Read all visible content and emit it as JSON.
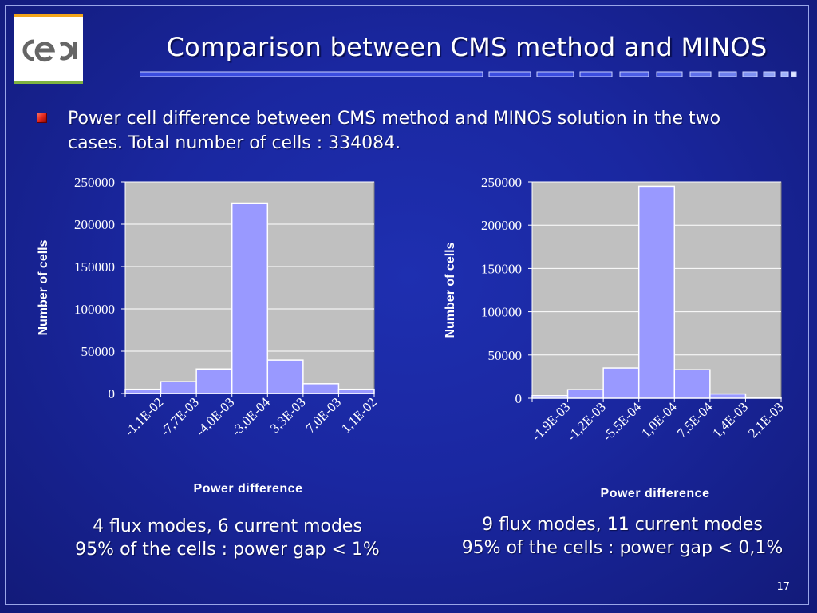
{
  "logo_text": "cea",
  "title": "Comparison between CMS method and MINOS",
  "bullet_text": "Power cell difference between CMS method and MINOS solution in the two cases. Total number of cells : 334084.",
  "chart_data": [
    {
      "type": "bar",
      "categories": [
        "-1,1E-02",
        "-7,7E-03",
        "-4,0E-03",
        "-3,0E-04",
        "3,3E-03",
        "7,0E-03",
        "1,1E-02"
      ],
      "values": [
        5000,
        14000,
        29000,
        225000,
        39500,
        11500,
        5000
      ],
      "xlabel": "Power difference",
      "ylabel": "Number of cells",
      "ylim": [
        0,
        250000
      ],
      "yticks": [
        0,
        50000,
        100000,
        150000,
        200000,
        250000
      ],
      "grid": true,
      "colors": {
        "bar": "#9999ff",
        "plot_bg": "#c0c0c0",
        "gridline": "#ffffff"
      }
    },
    {
      "type": "bar",
      "categories": [
        "-1,9E-03",
        "-1,2E-03",
        "-5,5E-04",
        "1,0E-04",
        "7,5E-04",
        "1,4E-03",
        "2,1E-03"
      ],
      "values": [
        3000,
        10000,
        35000,
        245000,
        33000,
        5000,
        1000
      ],
      "xlabel": "Power difference",
      "ylabel": "Number of cells",
      "ylim": [
        0,
        250000
      ],
      "yticks": [
        0,
        50000,
        100000,
        150000,
        200000,
        250000
      ],
      "grid": true,
      "colors": {
        "bar": "#9999ff",
        "plot_bg": "#c0c0c0",
        "gridline": "#ffffff"
      }
    }
  ],
  "captions": [
    {
      "line1": "4 flux modes, 6 current modes",
      "line2": "95% of the cells : power gap < 1%"
    },
    {
      "line1": "9 flux modes, 11 current modes",
      "line2": "95% of the cells : power gap < 0,1%"
    }
  ],
  "slide_number": "17"
}
